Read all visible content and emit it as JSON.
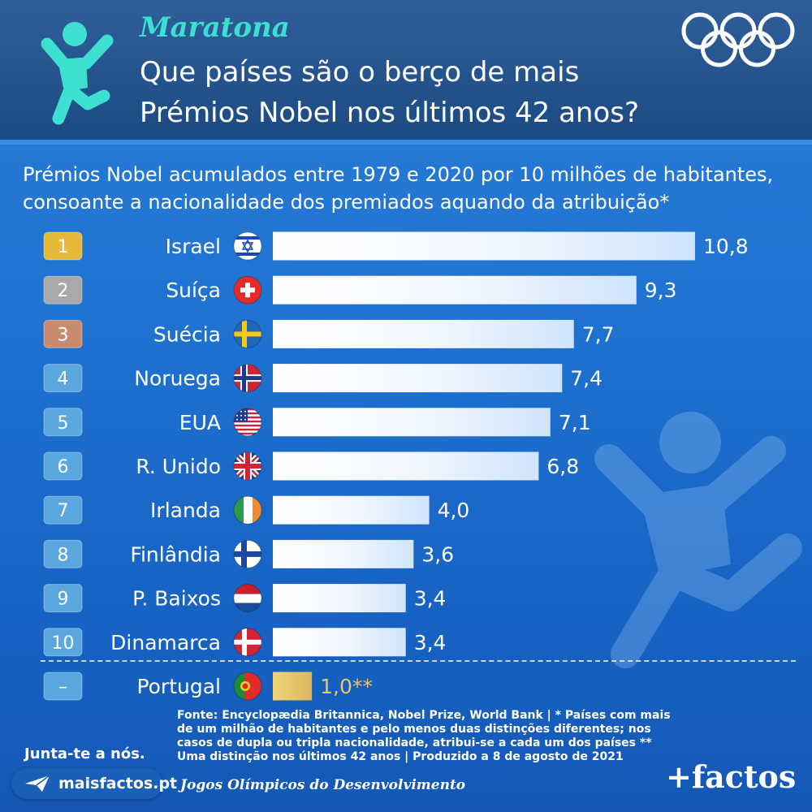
{
  "header": {
    "kicker": "Maratona",
    "headline": "Que países são o berço de mais Prémios Nobel nos últimos 42 anos?"
  },
  "icons": {
    "runner": "runner-icon",
    "rings": "olympic-rings-icon",
    "plane": "paper-plane-icon"
  },
  "colors": {
    "bar": "#ffffff",
    "portugal_bar": "#e9c66a",
    "gold": "#e6b93a",
    "silver": "#a9a9a9",
    "bronze": "#c88b6e",
    "rank": "#5aa7e0",
    "kicker": "#3de0d0"
  },
  "chart_data": {
    "type": "bar",
    "orientation": "horizontal",
    "title": "Prémios Nobel acumulados entre 1979 e 2020 por 10 milhões de habitantes, consoante a nacionalidade dos premiados aquando da atribuição*",
    "ranks": [
      "1",
      "2",
      "3",
      "4",
      "5",
      "6",
      "7",
      "8",
      "9",
      "10"
    ],
    "categories": [
      "Israel",
      "Suíça",
      "Suécia",
      "Noruega",
      "EUA",
      "R. Unido",
      "Irlanda",
      "Finlândia",
      "P. Baixos",
      "Dinamarca"
    ],
    "values": [
      10.8,
      9.3,
      7.7,
      7.4,
      7.1,
      6.8,
      4.0,
      3.6,
      3.4,
      3.4
    ],
    "value_labels": [
      "10,8",
      "9,3",
      "7,7",
      "7,4",
      "7,1",
      "6,8",
      "4,0",
      "3,6",
      "3,4",
      "3,4"
    ],
    "flags": [
      "israel-flag-icon",
      "switzerland-flag-icon",
      "sweden-flag-icon",
      "norway-flag-icon",
      "usa-flag-icon",
      "uk-flag-icon",
      "ireland-flag-icon",
      "finland-flag-icon",
      "netherlands-flag-icon",
      "denmark-flag-icon"
    ],
    "extra": {
      "rank": "–",
      "category": "Portugal",
      "value": 1.0,
      "value_label": "1,0**",
      "flag": "portugal-flag-icon"
    },
    "xlim": [
      0,
      10.8
    ],
    "grid": false
  },
  "footer": {
    "source": "Fonte: Encyclopædia Britannica, Nobel Prize, World Bank | * Países com mais de um milhão de habitantes e pelo menos duas distinções diferentes; nos casos de dupla ou tripla nacionalidade, atribui-se a cada um dos países ** Uma distinção nos últimos 42 anos | Produzido a 8 de agosto de 2021",
    "join": "Junta-te a nós.",
    "site": "maisfactos.pt",
    "tagline": "Jogos Olímpicos do Desenvolvimento",
    "logo": "+factos"
  }
}
